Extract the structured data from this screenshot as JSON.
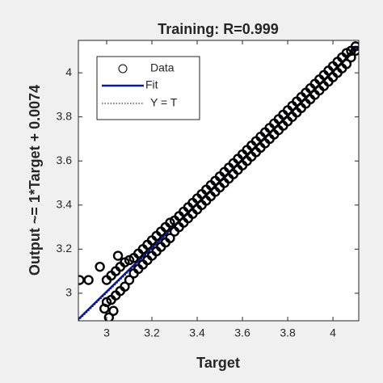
{
  "chart_data": {
    "type": "scatter",
    "title": "Training: R=0.999",
    "xlabel": "Target",
    "ylabel": "Output ~= 1*Target + 0.0074",
    "xlim": [
      2.875,
      4.114
    ],
    "ylim": [
      2.875,
      4.147
    ],
    "xticks": [
      3,
      3.2,
      3.4,
      3.6,
      3.8,
      4
    ],
    "yticks": [
      3,
      3.2,
      3.4,
      3.6,
      3.8,
      4
    ],
    "legend": "upper left",
    "series": [
      {
        "name": "Data",
        "color": "#000000",
        "x": [
          3.0,
          3.0,
          3.02,
          3.02,
          3.04,
          3.04,
          3.06,
          3.06,
          3.08,
          3.08,
          3.1,
          3.1,
          3.12,
          3.12,
          3.14,
          3.14,
          3.16,
          3.16,
          3.18,
          3.18,
          3.2,
          3.2,
          3.22,
          3.22,
          3.24,
          3.24,
          3.26,
          3.26,
          3.28,
          3.28,
          3.3,
          3.3,
          3.32,
          3.32,
          3.34,
          3.34,
          3.36,
          3.36,
          3.38,
          3.38,
          3.4,
          3.4,
          3.42,
          3.42,
          3.44,
          3.44,
          3.46,
          3.46,
          3.48,
          3.48,
          3.5,
          3.5,
          3.52,
          3.52,
          3.54,
          3.54,
          3.56,
          3.56,
          3.58,
          3.58,
          3.6,
          3.6,
          3.62,
          3.62,
          3.64,
          3.64,
          3.66,
          3.66,
          3.68,
          3.68,
          3.7,
          3.7,
          3.72,
          3.72,
          3.74,
          3.74,
          3.76,
          3.76,
          3.78,
          3.78,
          3.8,
          3.8,
          3.82,
          3.82,
          3.84,
          3.84,
          3.86,
          3.86,
          3.88,
          3.88,
          3.9,
          3.9,
          3.92,
          3.92,
          3.94,
          3.94,
          3.96,
          3.96,
          3.98,
          3.98,
          4.0,
          4.0,
          4.02,
          4.02,
          4.04,
          4.04,
          4.06,
          4.06,
          4.08,
          4.08,
          4.1,
          4.1,
          2.88,
          2.92,
          2.97,
          2.99,
          3.01,
          3.05,
          3.03
        ],
        "values": [
          3.06,
          2.96,
          3.08,
          2.97,
          3.1,
          2.99,
          3.12,
          3.01,
          3.14,
          3.03,
          3.15,
          3.06,
          3.16,
          3.09,
          3.18,
          3.11,
          3.2,
          3.13,
          3.22,
          3.15,
          3.24,
          3.17,
          3.26,
          3.19,
          3.28,
          3.21,
          3.3,
          3.23,
          3.32,
          3.25,
          3.33,
          3.28,
          3.35,
          3.3,
          3.37,
          3.32,
          3.39,
          3.34,
          3.41,
          3.36,
          3.43,
          3.38,
          3.45,
          3.4,
          3.47,
          3.42,
          3.49,
          3.44,
          3.51,
          3.46,
          3.53,
          3.48,
          3.55,
          3.5,
          3.57,
          3.52,
          3.59,
          3.54,
          3.61,
          3.56,
          3.63,
          3.58,
          3.65,
          3.6,
          3.67,
          3.62,
          3.69,
          3.64,
          3.71,
          3.66,
          3.73,
          3.68,
          3.75,
          3.7,
          3.77,
          3.72,
          3.79,
          3.74,
          3.81,
          3.76,
          3.83,
          3.78,
          3.85,
          3.8,
          3.87,
          3.82,
          3.89,
          3.84,
          3.91,
          3.86,
          3.93,
          3.88,
          3.95,
          3.9,
          3.97,
          3.92,
          3.99,
          3.94,
          4.01,
          3.96,
          4.03,
          3.98,
          4.05,
          4.0,
          4.07,
          4.02,
          4.09,
          4.04,
          4.1,
          4.07,
          4.12,
          4.1,
          3.06,
          3.06,
          3.12,
          2.93,
          2.89,
          3.17,
          2.92
        ]
      },
      {
        "name": "Fit",
        "color": "#0a1a9e",
        "x": [
          2.875,
          4.114
        ],
        "values": [
          2.8824,
          4.1214
        ]
      },
      {
        "name": "Y = T",
        "color": "#000000",
        "x": [
          2.875,
          4.114
        ],
        "values": [
          2.875,
          4.114
        ]
      }
    ]
  }
}
